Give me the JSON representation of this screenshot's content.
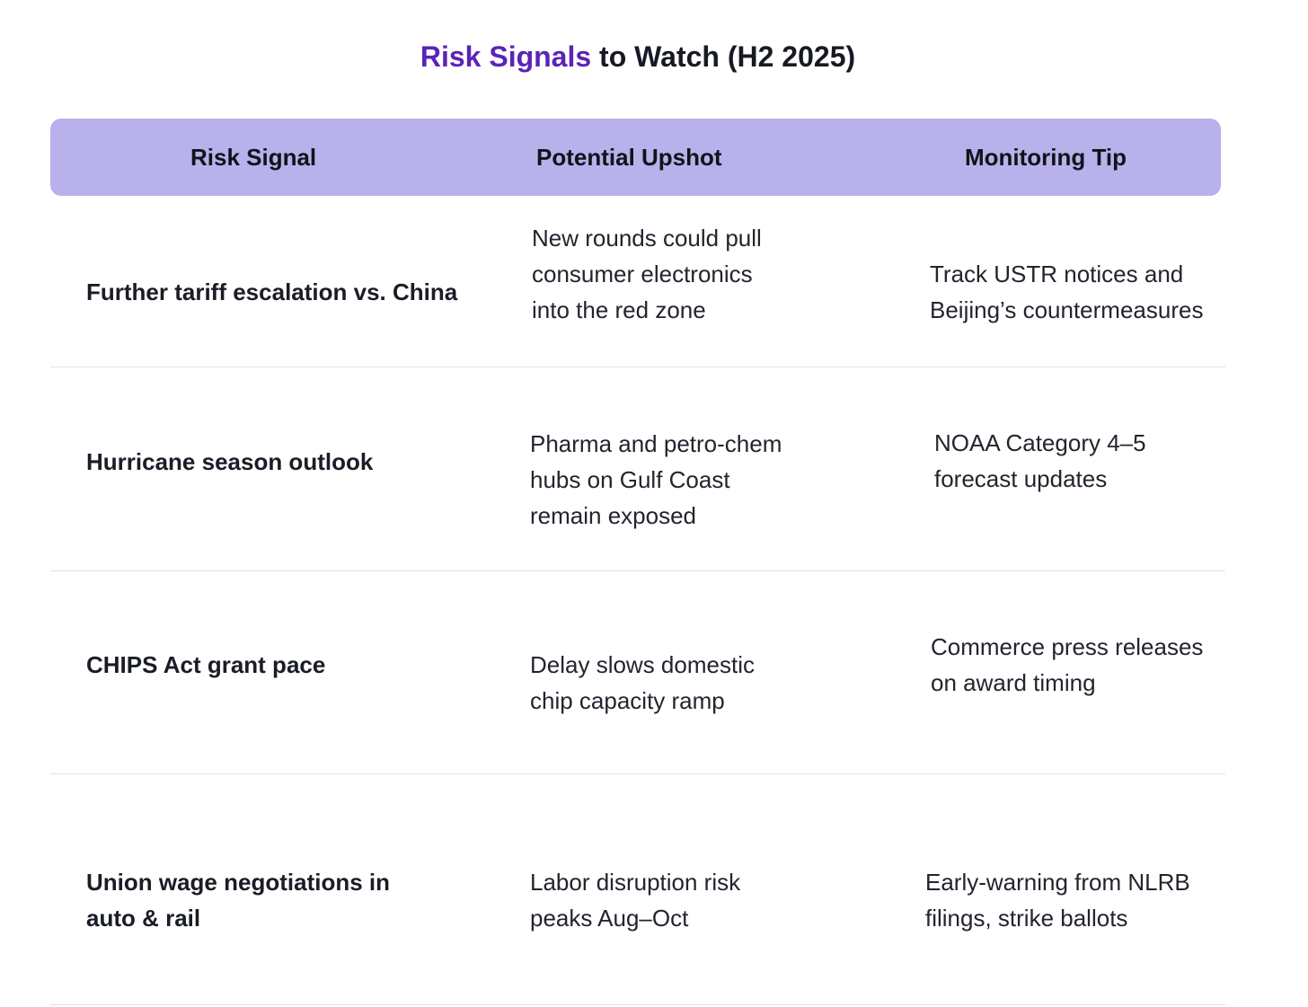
{
  "title": {
    "accent": "Risk Signals",
    "rest": " to Watch (H2 2025)"
  },
  "colors": {
    "accent": "#5b23b8",
    "header_bg": "#b8b1ec",
    "divider": "#dde3ea"
  },
  "table": {
    "headers": [
      "Risk Signal",
      "Potential Upshot",
      "Monitoring Tip"
    ],
    "rows": [
      {
        "signal": [
          "Further tariff escalation vs. China"
        ],
        "upshot": [
          "New rounds could pull",
          "consumer electronics",
          "into the red zone"
        ],
        "tip": [
          "Track USTR notices and",
          "Beijing’s countermeasures"
        ]
      },
      {
        "signal": [
          "Hurricane season outlook"
        ],
        "upshot": [
          "Pharma and petro-chem",
          "hubs on Gulf Coast",
          "remain exposed"
        ],
        "tip": [
          "NOAA Category 4–5",
          "forecast updates"
        ]
      },
      {
        "signal": [
          "CHIPS Act grant pace"
        ],
        "upshot": [
          "Delay slows domestic",
          "chip capacity ramp"
        ],
        "tip": [
          "Commerce press releases",
          "on award timing"
        ]
      },
      {
        "signal": [
          "Union wage negotiations in",
          "auto & rail"
        ],
        "upshot": [
          "Labor disruption risk",
          "peaks Aug–Oct"
        ],
        "tip": [
          "Early-warning from NLRB",
          "filings, strike ballots"
        ]
      }
    ]
  }
}
